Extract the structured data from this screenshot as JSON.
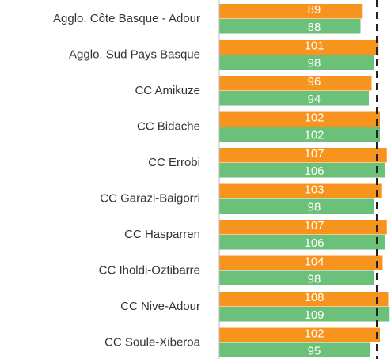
{
  "chart_data": {
    "type": "bar",
    "orientation": "horizontal",
    "categories": [
      "Agglo. Côte Basque - Adour",
      "Agglo. Sud Pays Basque",
      "CC Amikuze",
      "CC Bidache",
      "CC Errobi",
      "CC Garazi-Baigorri",
      "CC Hasparren",
      "CC Iholdi-Oztibarre",
      "CC Nive-Adour",
      "CC Soule-Xiberoa"
    ],
    "series": [
      {
        "color": "#f7941d",
        "values": [
          89,
          101,
          96,
          102,
          107,
          103,
          107,
          104,
          108,
          102
        ]
      },
      {
        "color": "#6cc17a",
        "values": [
          88,
          98,
          94,
          102,
          106,
          98,
          106,
          98,
          109,
          95
        ]
      }
    ],
    "xlim": [
      -14,
      110
    ],
    "reference_line": 100
  }
}
